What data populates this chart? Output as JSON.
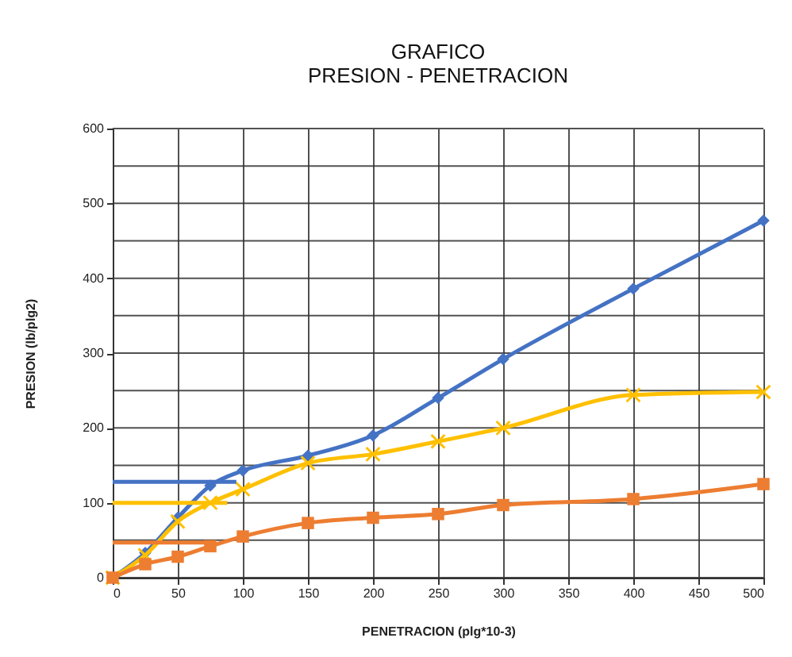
{
  "chart_data": {
    "type": "line",
    "title": "GRAFICO",
    "subtitle": "PRESION - PENETRACION",
    "xlabel": "PENETRACION (plg*10-3)",
    "ylabel": "PRESION (lb/plg2)",
    "x": [
      0,
      25,
      50,
      75,
      100,
      150,
      200,
      250,
      300,
      400,
      500
    ],
    "series": [
      {
        "color": "#4472c4",
        "marker": "diamond",
        "values": [
          0,
          33,
          80,
          123,
          143,
          163,
          190,
          240,
          292,
          386,
          477
        ]
      },
      {
        "color": "#ffc000",
        "marker": "cross",
        "values": [
          0,
          30,
          75,
          100,
          118,
          153,
          165,
          182,
          200,
          244,
          248
        ]
      },
      {
        "color": "#ed7d31",
        "marker": "square",
        "values": [
          0,
          18,
          28,
          42,
          55,
          73,
          80,
          85,
          97,
          105,
          125
        ]
      },
      {
        "color": "#4472c4",
        "marker": "none",
        "x": [
          0,
          95
        ],
        "values": [
          128,
          128
        ]
      },
      {
        "color": "#ffc000",
        "marker": "none",
        "x": [
          0,
          88
        ],
        "values": [
          100,
          100
        ]
      },
      {
        "color": "#ed7d31",
        "marker": "none",
        "x": [
          0,
          76
        ],
        "values": [
          47,
          47
        ]
      }
    ],
    "xlim": [
      0,
      500
    ],
    "xticks": [
      0,
      50,
      100,
      150,
      200,
      250,
      300,
      350,
      400,
      450,
      500
    ],
    "ylim": [
      0,
      600
    ],
    "yticks": [
      0,
      {
        "value": 50,
        "label": null
      },
      100,
      {
        "value": 150,
        "label": null
      },
      200,
      {
        "value": 250,
        "label": null
      },
      300,
      {
        "value": 350,
        "label": null
      },
      400,
      {
        "value": 450,
        "label": null
      },
      500,
      {
        "value": 550,
        "label": null
      },
      600
    ],
    "grid": true
  }
}
